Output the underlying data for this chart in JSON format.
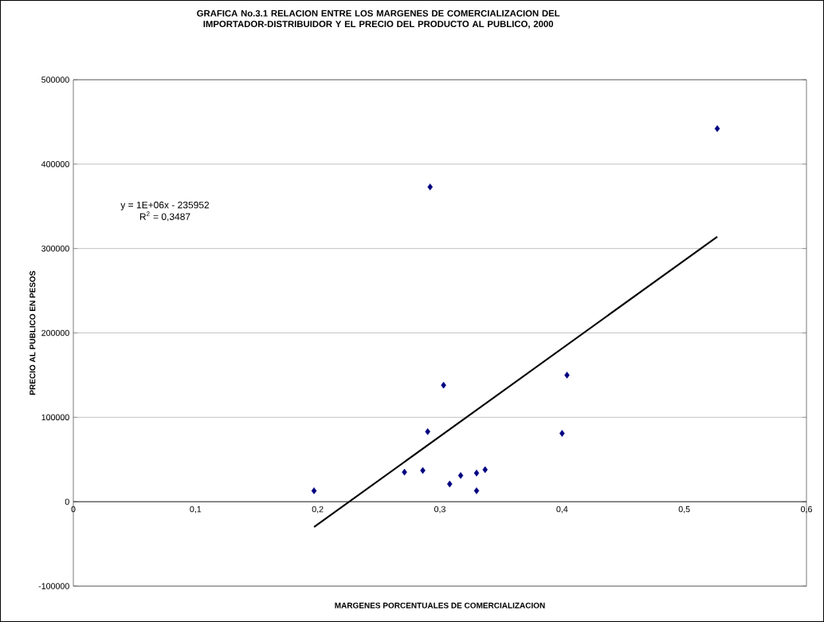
{
  "chart_data": {
    "type": "scatter",
    "title": "GRAFICA No.3.1    RELACION ENTRE LOS MARGENES DE COMERCIALIZACION DEL IMPORTADOR-DISTRIBUIDOR Y EL PRECIO DEL PRODUCTO AL PUBLICO, 2000",
    "xlabel": "MARGENES PORCENTUALES DE COMERCIALIZACION",
    "ylabel": "PRECIO AL PUBLICO EN PESOS",
    "annotations": [
      "y = 1E+06x - 235952",
      "R$^{2}$ = 0,3487"
    ],
    "series": [
      {
        "color": "#000080",
        "marker": "diamond",
        "x": [
          0.197,
          0.271,
          0.286,
          0.29,
          0.292,
          0.303,
          0.308,
          0.317,
          0.33,
          0.33,
          0.337,
          0.4,
          0.404,
          0.527
        ],
        "values": [
          13000,
          35000,
          37000,
          83000,
          373000,
          138000,
          21000,
          31000,
          34000,
          13000,
          38000,
          81000,
          150000,
          442000
        ]
      },
      {
        "type": "line",
        "color": "#000000",
        "marker": "none",
        "x": [
          0.197,
          0.527
        ],
        "values": [
          -30000,
          314000
        ]
      }
    ],
    "xlim": [
      0,
      0.6
    ],
    "ylim": [
      -100000,
      500000
    ],
    "xticks": [
      0,
      {
        "value": 0.1,
        "label": "0,1"
      },
      {
        "value": 0.2,
        "label": "0,2"
      },
      {
        "value": 0.3,
        "label": "0,3"
      },
      {
        "value": 0.4,
        "label": "0,4"
      },
      {
        "value": 0.5,
        "label": "0,5"
      },
      {
        "value": 0.6,
        "label": "0,6"
      }
    ],
    "yticks": [
      -100000,
      0,
      100000,
      200000,
      300000,
      400000,
      500000
    ],
    "grid": "y"
  }
}
